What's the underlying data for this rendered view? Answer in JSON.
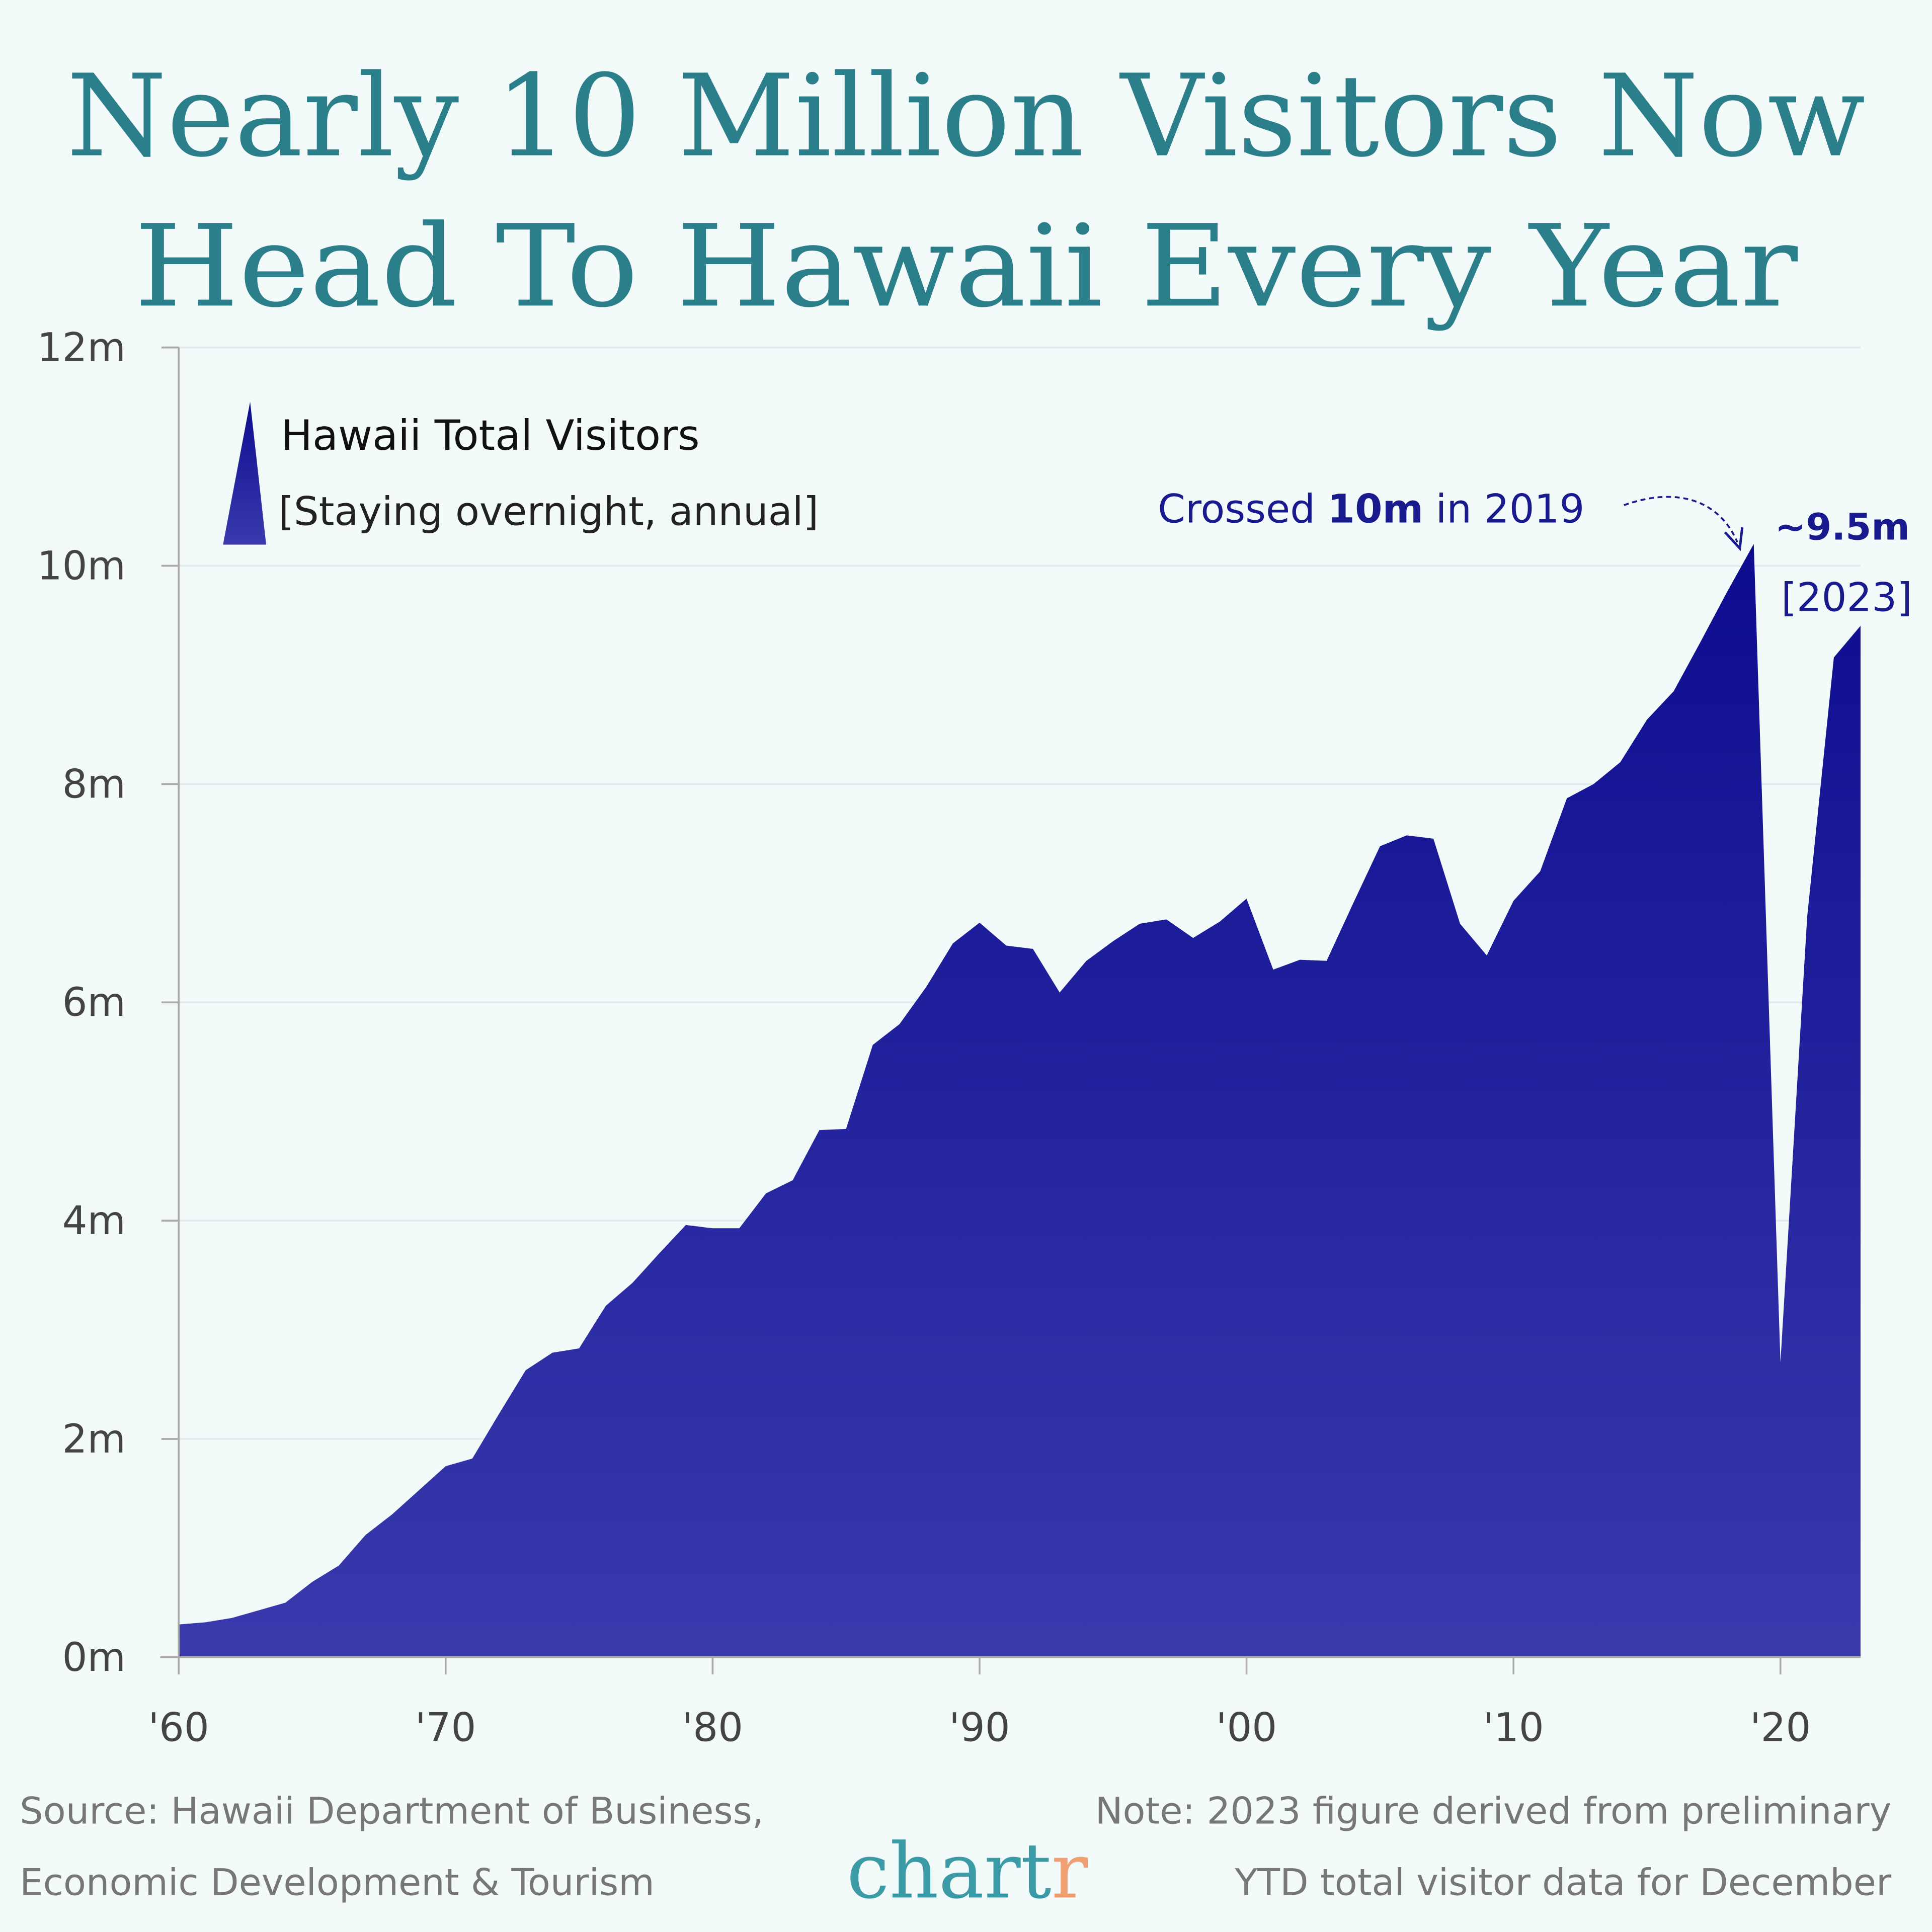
{
  "chart_data": {
    "type": "area",
    "title": [
      "Nearly 10 Million Visitors Now",
      "Head To Hawaii Every Year"
    ],
    "x": [
      1960,
      1961,
      1962,
      1963,
      1964,
      1965,
      1966,
      1967,
      1968,
      1969,
      1970,
      1971,
      1972,
      1973,
      1974,
      1975,
      1976,
      1977,
      1978,
      1979,
      1980,
      1981,
      1982,
      1983,
      1984,
      1985,
      1986,
      1987,
      1988,
      1989,
      1990,
      1991,
      1992,
      1993,
      1994,
      1995,
      1996,
      1997,
      1998,
      1999,
      2000,
      2001,
      2002,
      2003,
      2004,
      2005,
      2006,
      2007,
      2008,
      2009,
      2010,
      2011,
      2012,
      2013,
      2014,
      2015,
      2016,
      2017,
      2018,
      2019,
      2020,
      2021,
      2022,
      2023
    ],
    "series": [
      {
        "name": "Hawaii Total Visitors",
        "color": "#0d0c8f",
        "values": [
          0.3,
          0.32,
          0.36,
          0.43,
          0.5,
          0.69,
          0.84,
          1.12,
          1.31,
          1.53,
          1.75,
          1.82,
          2.23,
          2.63,
          2.79,
          2.83,
          3.22,
          3.43,
          3.7,
          3.96,
          3.93,
          3.93,
          4.25,
          4.37,
          4.83,
          4.84,
          5.61,
          5.8,
          6.14,
          6.54,
          6.73,
          6.52,
          6.49,
          6.09,
          6.38,
          6.56,
          6.72,
          6.76,
          6.59,
          6.74,
          6.95,
          6.3,
          6.39,
          6.38,
          6.91,
          7.43,
          7.53,
          7.5,
          6.72,
          6.43,
          6.93,
          7.2,
          7.87,
          8.0,
          8.2,
          8.59,
          8.85,
          9.3,
          9.76,
          10.2,
          2.7,
          6.78,
          9.16,
          9.45
        ]
      }
    ],
    "legend_note": "[Staying overnight, annual]",
    "xlim": [
      1960,
      2023
    ],
    "xticks": [
      {
        "value": 1960,
        "label": "'60"
      },
      {
        "value": 1970,
        "label": "'70"
      },
      {
        "value": 1980,
        "label": "'80"
      },
      {
        "value": 1990,
        "label": "'90"
      },
      {
        "value": 2000,
        "label": "'00"
      },
      {
        "value": 2010,
        "label": "'10"
      },
      {
        "value": 2020,
        "label": "'20"
      }
    ],
    "ylim": [
      0,
      12
    ],
    "yticks": [
      {
        "value": 0,
        "label": "0m"
      },
      {
        "value": 2,
        "label": "2m"
      },
      {
        "value": 4,
        "label": "4m"
      },
      {
        "value": 6,
        "label": "6m"
      },
      {
        "value": 8,
        "label": "8m"
      },
      {
        "value": 10,
        "label": "10m"
      },
      {
        "value": 12,
        "label": "12m"
      }
    ],
    "grid": true,
    "annotations": [
      {
        "parts": [
          "Crossed",
          "10m",
          "in 2019"
        ]
      },
      {
        "label": "~9.5m",
        "sublabel": "[2023]"
      }
    ],
    "source": [
      "Source: Hawaii Department of Business,",
      "Economic Development & Tourism"
    ],
    "note": [
      "Note: 2023 figure derived from preliminary",
      "YTD total visitor data for December"
    ],
    "logo": [
      "chart",
      "r"
    ]
  }
}
